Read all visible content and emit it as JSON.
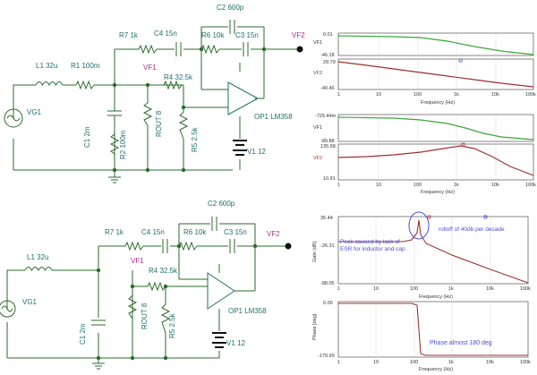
{
  "colors": {
    "wire": "#2b6b2b",
    "component": "#1f6f6a",
    "label": "#1f6f6a",
    "vf1_label": "#b0308f",
    "vf2_label": "#b0308f",
    "plot_green": "#3aa63a",
    "plot_red": "#a03030",
    "annotation": "#4b4fd4",
    "axis_text": "#333333",
    "grid": "#d8d8d8"
  },
  "circuit_top": {
    "components": {
      "L1": "L1 32u",
      "R1": "R1 100m",
      "VG1": "VG1",
      "C1": "C1 2m",
      "R2": "R2 100m",
      "ROUT": "ROUT 8",
      "R4": "R4 32.5k",
      "R5": "R5 2.5k",
      "R7": "R7 1k",
      "C4": "C4 15n",
      "R6": "R6 10k",
      "C3": "C3 15n",
      "C2": "C2 600p",
      "OP1": "OP1 LM358",
      "V1": "V1 12",
      "VF1": "VF1",
      "VF2": "VF2"
    }
  },
  "circuit_bottom": {
    "components": {
      "L1": "L1 32u",
      "VG1": "VG1",
      "C1": "C1 2m",
      "ROUT": "ROUT 8",
      "R4": "R4 32.5k",
      "R5": "R5 2.5k",
      "R7": "R7 1k",
      "C4": "C4 15n",
      "R6": "R6 10k",
      "C3": "C3 15n",
      "C2": "C2 600p",
      "OP1": "OP1 LM358",
      "V1": "V1 12",
      "VF1": "VF1",
      "VF2": "VF2"
    }
  },
  "plots": {
    "top1": {
      "labels": {
        "upper_trace": "VF1",
        "lower_trace": "VF2",
        "xlabel": "Frequency (Hz)"
      },
      "ticks_upper": [
        "0.01",
        "-46.18"
      ],
      "ticks_lower": [
        "29.79",
        "-40.46"
      ],
      "x_ticks": [
        "1",
        "10",
        "100",
        "1k",
        "10k",
        "100k"
      ]
    },
    "top2": {
      "labels": {
        "upper_trace": "VF1",
        "lower_trace": "VF2",
        "xlabel": "Frequency (Hz)"
      },
      "ticks_upper": [
        "-725.44m",
        "-89.88"
      ],
      "ticks_lower": [
        "135.58",
        "10.91"
      ],
      "x_ticks": [
        "1",
        "10",
        "100",
        "1k",
        "10k",
        "100k"
      ]
    },
    "gain": {
      "ylabel": "Gain (dB)",
      "xlabel": "Frequency (Hz)",
      "y_ticks": [
        "35.44",
        "-26.31",
        "-88.05"
      ],
      "x_ticks": [
        "1",
        "10",
        "100",
        "1k",
        "10k",
        "100k"
      ],
      "annotation_peak": "Peak caused by lack of\nESR for inductor and cap",
      "annotation_rolloff": "rolloff of 40db per decade"
    },
    "phase": {
      "ylabel": "Phase [deg]",
      "xlabel": "Frequency (Hz)",
      "y_ticks": [
        "0.00",
        "-179.99"
      ],
      "x_ticks": [
        "1",
        "10",
        "100",
        "1k",
        "10k",
        "100k"
      ],
      "annotation": "Phase almost 180 deg"
    }
  }
}
